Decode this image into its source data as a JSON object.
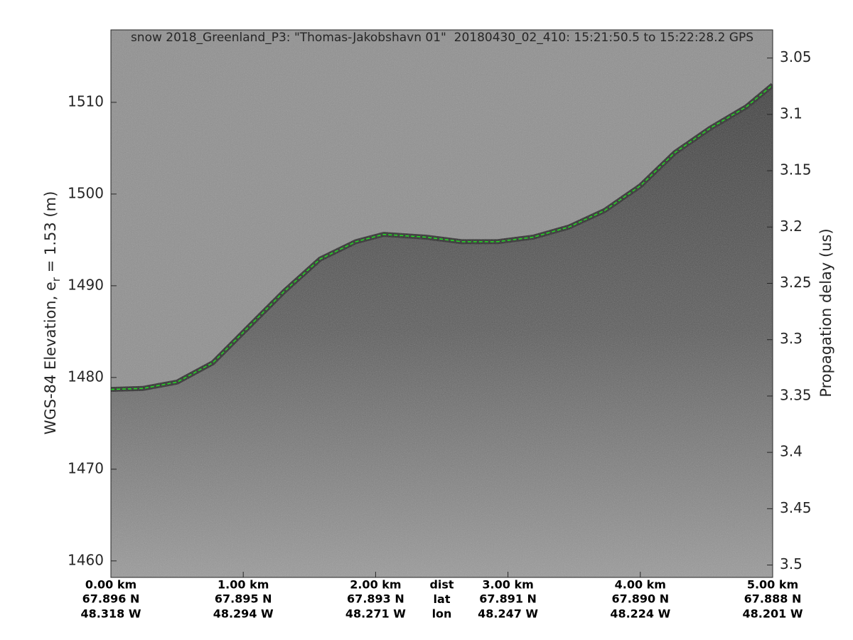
{
  "chart_data": {
    "type": "echogram",
    "title": "snow 2018_Greenland_P3: \"Thomas-Jakobshavn 01\"  20180430_02_410: 15:21:50.5 to 15:22:28.2 GPS",
    "ylabel": "WGS-84 Elevation, e",
    "ylabel_subscript": "r",
    "ylabel_suffix": " = 1.53 (m)",
    "y2label": "Propagation delay (us)",
    "xlim": [
      0,
      5
    ],
    "xticks": [
      {
        "value": 0,
        "label": "0.00 km"
      },
      {
        "value": 1,
        "label": "1.00 km"
      },
      {
        "value": 2,
        "label": "2.00 km"
      },
      {
        "value": 3,
        "label": "3.00 km"
      },
      {
        "value": 4,
        "label": "4.00 km"
      },
      {
        "value": 5,
        "label": "5.00 km"
      }
    ],
    "lat": [
      "67.896 N",
      "67.895 N",
      "67.893 N",
      "67.891 N",
      "67.890 N",
      "67.888 N"
    ],
    "lon": [
      "48.318 W",
      "48.294 W",
      "48.271 W",
      "48.247 W",
      "48.224 W",
      "48.201 W"
    ],
    "x_row_labels": [
      "dist",
      "lat",
      "lon"
    ],
    "ylim": [
      1458.2,
      1517.9
    ],
    "yticks": [
      1460,
      1470,
      1480,
      1490,
      1500,
      1510
    ],
    "y2lim": [
      3.511,
      3.025
    ],
    "y2ticks": [
      3.05,
      3.1,
      3.15,
      3.2,
      3.25,
      3.3,
      3.35,
      3.4,
      3.45,
      3.5
    ],
    "series": [
      {
        "name": "surface",
        "color": "#22dd22",
        "x": [
          0,
          0.24,
          0.5,
          0.77,
          1.04,
          1.31,
          1.58,
          1.85,
          2.06,
          2.38,
          2.65,
          2.92,
          3.19,
          3.46,
          3.73,
          4.0,
          4.26,
          4.53,
          4.8,
          5.0
        ],
        "values": [
          1478.7,
          1478.8,
          1479.5,
          1481.6,
          1485.5,
          1489.4,
          1492.9,
          1494.8,
          1495.6,
          1495.3,
          1494.8,
          1494.8,
          1495.3,
          1496.4,
          1498.2,
          1500.9,
          1504.5,
          1507.2,
          1509.5,
          1511.9
        ]
      }
    ]
  }
}
